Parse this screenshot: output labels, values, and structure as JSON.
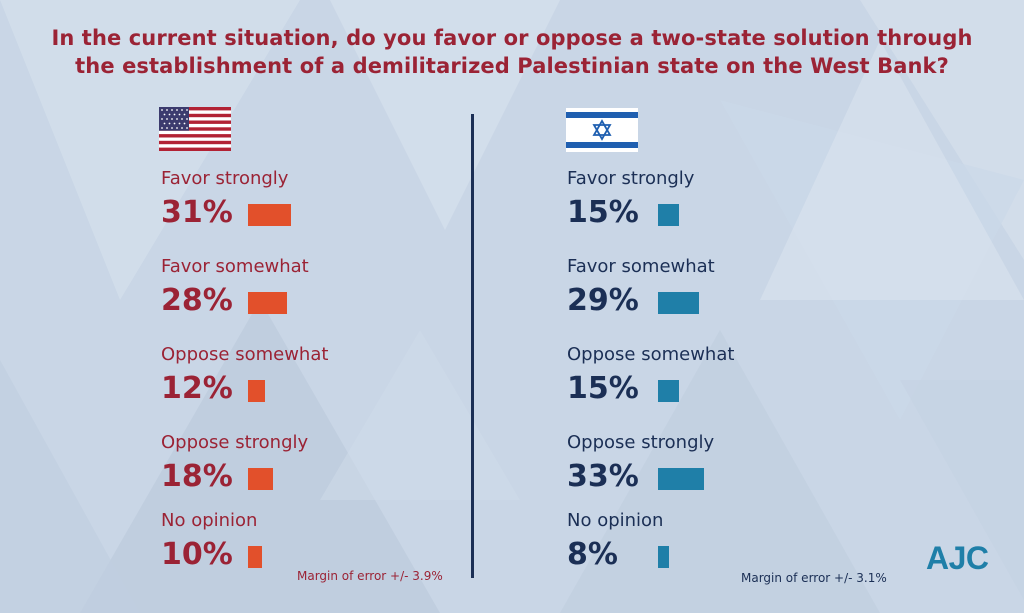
{
  "title_lines": [
    "In the current situation, do you favor or oppose a two-state solution through",
    "the establishment of a demilitarized Palestinian state on the West Bank?"
  ],
  "colors": {
    "title": "#9b2335",
    "us_text": "#9b2335",
    "us_bar": "#e2502b",
    "il_text": "#1b2f55",
    "il_bar": "#1f7fa8",
    "divider": "#1b2f55"
  },
  "icons": {
    "us": "us-flag-icon",
    "il": "israel-flag-icon"
  },
  "chart_data": [
    {
      "type": "bar",
      "categories": [
        "Favor strongly",
        "Favor somewhat",
        "Oppose somewhat",
        "Oppose strongly",
        "No opinion"
      ],
      "values": [
        31,
        28,
        12,
        18,
        10
      ],
      "value_labels": [
        "31%",
        "28%",
        "12%",
        "18%",
        "10%"
      ],
      "note": "Margin of error +/- 3.9%"
    },
    {
      "type": "bar",
      "categories": [
        "Favor strongly",
        "Favor somewhat",
        "Oppose somewhat",
        "Oppose strongly",
        "No opinion"
      ],
      "values": [
        15,
        29,
        15,
        33,
        8
      ],
      "value_labels": [
        "15%",
        "29%",
        "15%",
        "33%",
        "8%"
      ],
      "note": "Margin of error +/- 3.1%"
    }
  ],
  "logo_text": "AJC"
}
